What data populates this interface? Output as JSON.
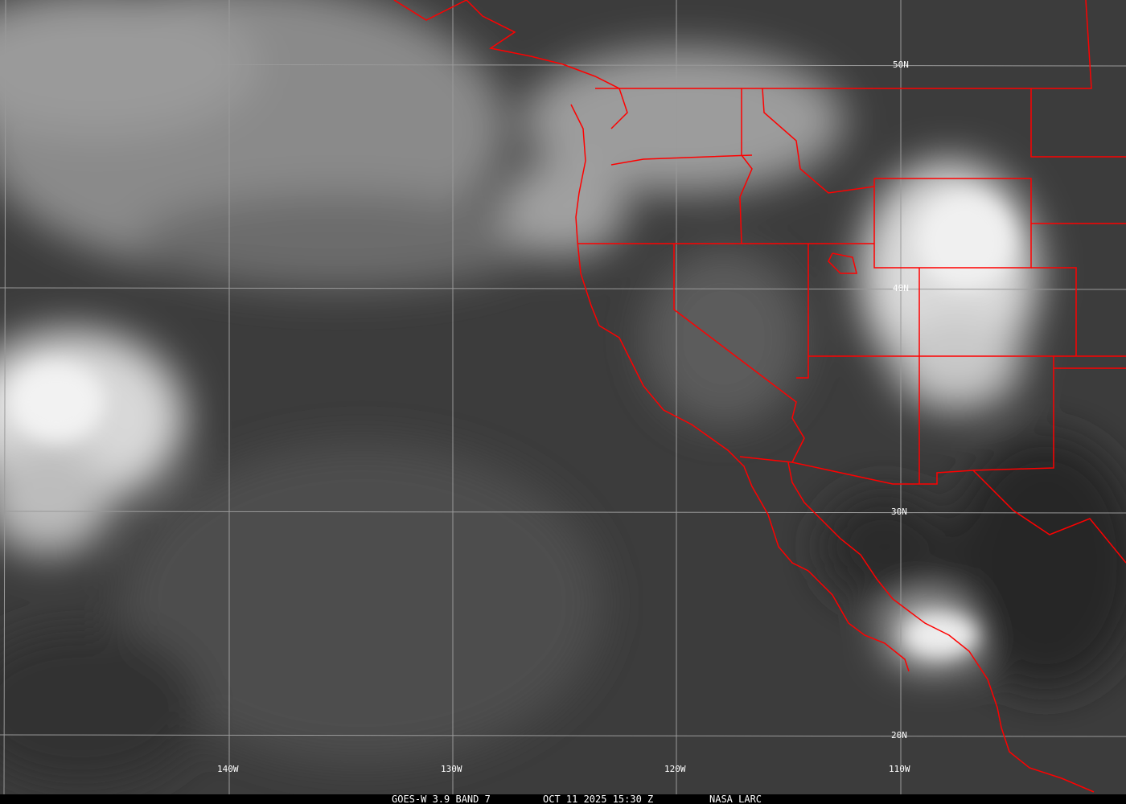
{
  "image": {
    "type": "satellite infrared imagery",
    "colors": {
      "boundaries": "#ff0000",
      "grid": "#9a9a9a",
      "labels": "#ffffff",
      "caption_bg": "#000000"
    }
  },
  "grid": {
    "latitude_labels": [
      "50N",
      "40N",
      "30N",
      "20N"
    ],
    "longitude_labels": [
      "140W",
      "130W",
      "120W",
      "110W"
    ]
  },
  "caption": {
    "product": "GOES-W 3.9 BAND 7",
    "datetime": "OCT 11 2025 15:30 Z",
    "source": "NASA LARC"
  }
}
